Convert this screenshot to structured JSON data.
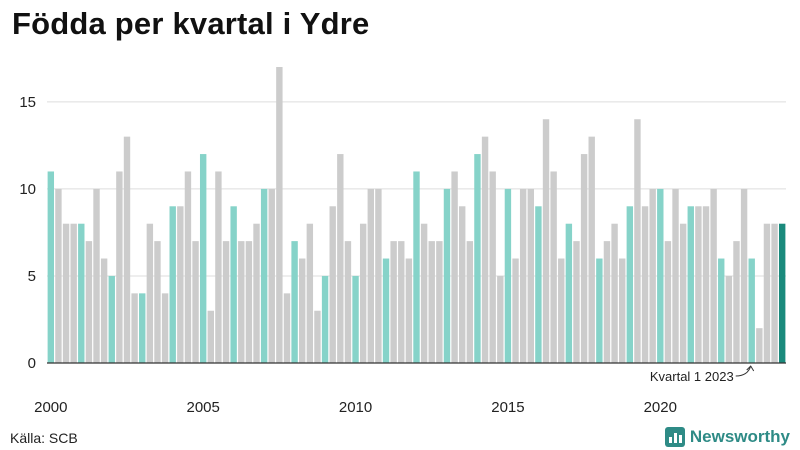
{
  "chart_data": {
    "type": "bar",
    "title": "Födda per kvartal i Ydre",
    "source": "Källa: SCB",
    "x_tick_labels": [
      "2000",
      "2005",
      "2010",
      "2015",
      "2020"
    ],
    "y_ticks": [
      0,
      5,
      10,
      15
    ],
    "ylim": [
      0,
      17
    ],
    "grid": "horizontal",
    "annotation": {
      "text": "Kvartal 1 2023",
      "target_index": 92
    },
    "colors": {
      "q1": "#86d3c9",
      "other": "#cccccc",
      "latest": "#1a8a7c",
      "grid": "#dddddd",
      "axis": "#333333"
    },
    "categories": [
      "2000 K1",
      "2000 K2",
      "2000 K3",
      "2000 K4",
      "2001 K1",
      "2001 K2",
      "2001 K3",
      "2001 K4",
      "2002 K1",
      "2002 K2",
      "2002 K3",
      "2002 K4",
      "2003 K1",
      "2003 K2",
      "2003 K3",
      "2003 K4",
      "2004 K1",
      "2004 K2",
      "2004 K3",
      "2004 K4",
      "2005 K1",
      "2005 K2",
      "2005 K3",
      "2005 K4",
      "2006 K1",
      "2006 K2",
      "2006 K3",
      "2006 K4",
      "2007 K1",
      "2007 K2",
      "2007 K3",
      "2007 K4",
      "2008 K1",
      "2008 K2",
      "2008 K3",
      "2008 K4",
      "2009 K1",
      "2009 K2",
      "2009 K3",
      "2009 K4",
      "2010 K1",
      "2010 K2",
      "2010 K3",
      "2010 K4",
      "2011 K1",
      "2011 K2",
      "2011 K3",
      "2011 K4",
      "2012 K1",
      "2012 K2",
      "2012 K3",
      "2012 K4",
      "2013 K1",
      "2013 K2",
      "2013 K3",
      "2013 K4",
      "2014 K1",
      "2014 K2",
      "2014 K3",
      "2014 K4",
      "2015 K1",
      "2015 K2",
      "2015 K3",
      "2015 K4",
      "2016 K1",
      "2016 K2",
      "2016 K3",
      "2016 K4",
      "2017 K1",
      "2017 K2",
      "2017 K3",
      "2017 K4",
      "2018 K1",
      "2018 K2",
      "2018 K3",
      "2018 K4",
      "2019 K1",
      "2019 K2",
      "2019 K3",
      "2019 K4",
      "2020 K1",
      "2020 K2",
      "2020 K3",
      "2020 K4",
      "2021 K1",
      "2021 K2",
      "2021 K3",
      "2021 K4",
      "2022 K1",
      "2022 K2",
      "2022 K3",
      "2022 K4",
      "2023 K1",
      "2023 K2",
      "2023 K3",
      "2023 K4",
      "2024 K1"
    ],
    "values": [
      11,
      10,
      8,
      8,
      8,
      7,
      10,
      6,
      5,
      11,
      13,
      4,
      4,
      8,
      7,
      4,
      9,
      9,
      11,
      7,
      12,
      3,
      11,
      7,
      9,
      7,
      7,
      8,
      10,
      10,
      17,
      4,
      7,
      6,
      8,
      3,
      5,
      9,
      12,
      7,
      5,
      8,
      10,
      10,
      6,
      7,
      7,
      6,
      11,
      8,
      7,
      7,
      10,
      11,
      9,
      7,
      12,
      13,
      11,
      5,
      10,
      6,
      10,
      10,
      9,
      14,
      11,
      6,
      8,
      7,
      12,
      13,
      6,
      7,
      8,
      6,
      9,
      14,
      9,
      10,
      10,
      7,
      10,
      8,
      9,
      9,
      9,
      10,
      6,
      5,
      7,
      10,
      6,
      2,
      8,
      8,
      8
    ]
  }
}
